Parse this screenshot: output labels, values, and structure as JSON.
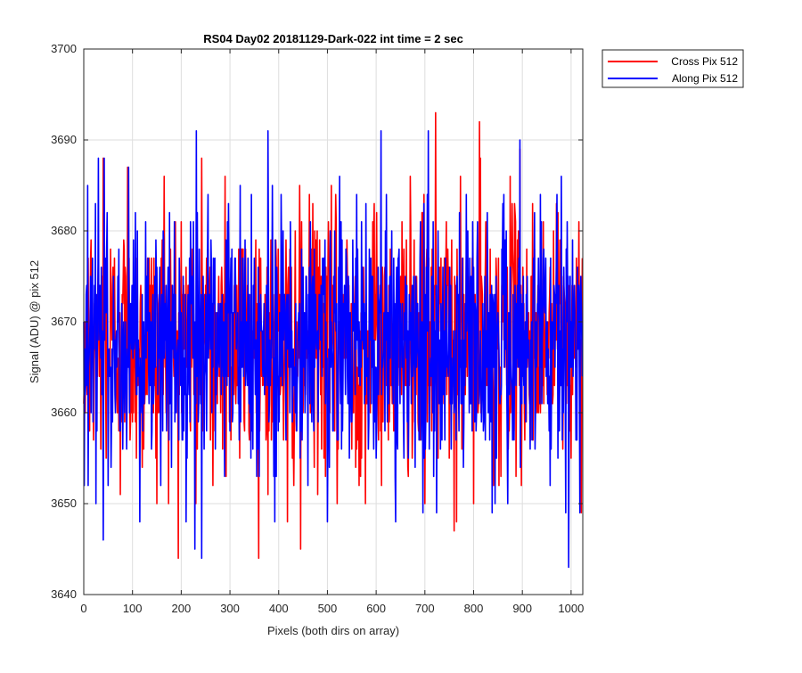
{
  "chart_data": {
    "type": "line",
    "title": "RS04 Day02 20181129-Dark-022 int time = 2 sec",
    "xlabel": "Pixels (both dirs on array)",
    "ylabel": "Signal (ADU) @ pix 512",
    "xlim": [
      0,
      1024
    ],
    "ylim": [
      3640,
      3700
    ],
    "xticks": [
      0,
      100,
      200,
      300,
      400,
      500,
      600,
      700,
      800,
      900,
      1000
    ],
    "yticks": [
      3640,
      3650,
      3660,
      3670,
      3680,
      3690,
      3700
    ],
    "grid": true,
    "legend_position": "outside-top-right",
    "series": [
      {
        "name": "Cross Pix 512",
        "color": "#ff0000",
        "x_step": 1,
        "x_start": 0,
        "noise_mean": 3668,
        "noise_std": 7,
        "values_sampled": {
          "note_points": [
            [
              0,
              3661
            ],
            [
              20,
              3657
            ],
            [
              40,
              3688
            ],
            [
              75,
              3651
            ],
            [
              90,
              3687
            ],
            [
              120,
              3654
            ],
            [
              150,
              3650
            ],
            [
              165,
              3686
            ],
            [
              200,
              3681
            ],
            [
              230,
              3650
            ],
            [
              242,
              3688
            ],
            [
              265,
              3652
            ],
            [
              290,
              3686
            ],
            [
              320,
              3655
            ],
            [
              385,
              3657
            ],
            [
              418,
              3648
            ],
            [
              445,
              3645
            ],
            [
              470,
              3683
            ],
            [
              520,
              3650
            ],
            [
              565,
              3652
            ],
            [
              600,
              3675
            ],
            [
              640,
              3655
            ],
            [
              670,
              3686
            ],
            [
              700,
              3650
            ],
            [
              722,
              3693
            ],
            [
              760,
              3647
            ],
            [
              800,
              3650
            ],
            [
              812,
              3692
            ],
            [
              850,
              3668
            ],
            [
              875,
              3686
            ],
            [
              895,
              3689
            ],
            [
              930,
              3660
            ],
            [
              970,
              3683
            ],
            [
              1000,
              3655
            ],
            [
              1023,
              3677
            ]
          ]
        }
      },
      {
        "name": "Along Pix 512",
        "color": "#0000ff",
        "x_step": 1,
        "x_start": 0,
        "noise_mean": 3668,
        "noise_std": 7,
        "values_sampled": {
          "note_points": [
            [
              0,
              3670
            ],
            [
              8,
              3685
            ],
            [
              25,
              3650
            ],
            [
              30,
              3688
            ],
            [
              40,
              3646
            ],
            [
              42,
              3688
            ],
            [
              80,
              3656
            ],
            [
              110,
              3680
            ],
            [
              140,
              3658
            ],
            [
              180,
              3654
            ],
            [
              210,
              3648
            ],
            [
              228,
              3645
            ],
            [
              242,
              3644
            ],
            [
              255,
              3684
            ],
            [
              270,
              3656
            ],
            [
              300,
              3658
            ],
            [
              345,
              3658
            ],
            [
              378,
              3691
            ],
            [
              392,
              3648
            ],
            [
              405,
              3684
            ],
            [
              460,
              3652
            ],
            [
              500,
              3648
            ],
            [
              545,
              3655
            ],
            [
              560,
              3684
            ],
            [
              600,
              3655
            ],
            [
              640,
              3648
            ],
            [
              680,
              3654
            ],
            [
              720,
              3658
            ],
            [
              770,
              3658
            ],
            [
              820,
              3658
            ],
            [
              870,
              3650
            ],
            [
              895,
              3690
            ],
            [
              920,
              3657
            ],
            [
              980,
              3686
            ],
            [
              995,
              3643
            ],
            [
              1010,
              3657
            ],
            [
              1023,
              3664
            ]
          ]
        }
      }
    ]
  }
}
